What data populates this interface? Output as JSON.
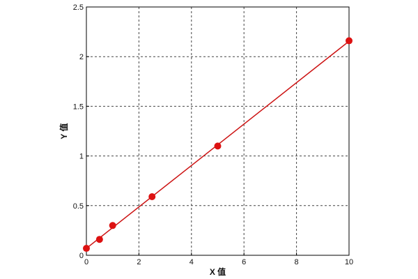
{
  "chart_data": {
    "type": "scatter",
    "title": "",
    "xlabel": "X 值",
    "ylabel": "Y 值",
    "xlim": [
      0,
      10
    ],
    "ylim": [
      0,
      2.5
    ],
    "x_ticks": [
      0,
      2,
      4,
      6,
      8,
      10
    ],
    "y_ticks": [
      0,
      0.5,
      1,
      1.5,
      2,
      2.5
    ],
    "x_tick_labels": [
      "0",
      "2",
      "4",
      "6",
      "8",
      "10"
    ],
    "y_tick_labels": [
      "0",
      "0.5",
      "1",
      "1.5",
      "2",
      "2.5"
    ],
    "grid": true,
    "series": [
      {
        "points": [
          {
            "x": 0,
            "y": 0.07
          },
          {
            "x": 0.5,
            "y": 0.16
          },
          {
            "x": 1,
            "y": 0.3
          },
          {
            "x": 2.5,
            "y": 0.59
          },
          {
            "x": 5,
            "y": 1.1
          },
          {
            "x": 10,
            "y": 2.16
          }
        ],
        "color": "#dd1111"
      }
    ],
    "trendline": {
      "type": "linear",
      "color": "#cc1111"
    }
  }
}
